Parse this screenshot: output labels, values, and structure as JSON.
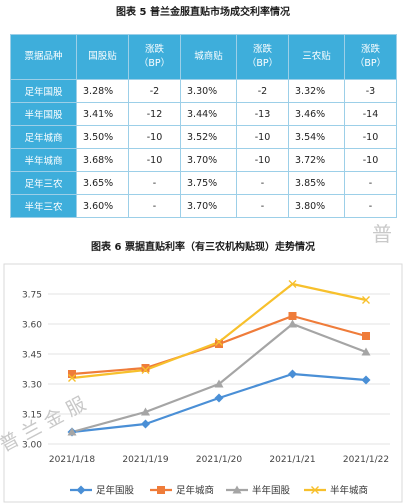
{
  "table": {
    "title": "图表 5  普兰金服直贴市场成交利率情况",
    "headers": [
      "票据品种",
      "国股贴",
      "涨跌\n（BP）",
      "城商贴",
      "涨跌\n（BP）",
      "三农贴",
      "涨跌\n（BP）"
    ],
    "rows": [
      [
        "足年国股",
        "3.28%",
        "-2",
        "3.30%",
        "-2",
        "3.32%",
        "-3"
      ],
      [
        "半年国股",
        "3.41%",
        "-12",
        "3.44%",
        "-13",
        "3.46%",
        "-14"
      ],
      [
        "足年城商",
        "3.50%",
        "-10",
        "3.52%",
        "-10",
        "3.54%",
        "-10"
      ],
      [
        "半年城商",
        "3.68%",
        "-10",
        "3.70%",
        "-10",
        "3.72%",
        "-10"
      ],
      [
        "足年三农",
        "3.65%",
        "-",
        "3.75%",
        "-",
        "3.85%",
        "-"
      ],
      [
        "半年三农",
        "3.60%",
        "-",
        "3.70%",
        "-",
        "3.80%",
        "-"
      ]
    ],
    "header_color": "#3eaedb",
    "border_color": "#9ccfe8"
  },
  "watermark_top": "普",
  "watermark_bottom": "普 兰 金 服",
  "chart_data": {
    "type": "line",
    "title": "图表 6  票据直贴利率（有三农机构贴现）走势情况",
    "x": [
      "2021/1/18",
      "2021/1/19",
      "2021/1/20",
      "2021/1/21",
      "2021/1/22"
    ],
    "ylim": [
      3.0,
      3.85
    ],
    "yticks": [
      "3.00",
      "3.15",
      "3.30",
      "3.45",
      "3.60",
      "3.75"
    ],
    "grid": true,
    "legend": "bottom",
    "series": [
      {
        "name": "足年国股",
        "values": [
          3.06,
          3.1,
          3.23,
          3.35,
          3.32
        ],
        "color": "#4a8fd6",
        "marker": "diamond"
      },
      {
        "name": "足年城商",
        "values": [
          3.35,
          3.38,
          3.5,
          3.64,
          3.54
        ],
        "color": "#ef7c3a",
        "marker": "square"
      },
      {
        "name": "半年国股",
        "values": [
          3.06,
          3.16,
          3.3,
          3.6,
          3.46
        ],
        "color": "#a5a5a5",
        "marker": "triangle"
      },
      {
        "name": "半年城商",
        "values": [
          3.33,
          3.37,
          3.51,
          3.8,
          3.72
        ],
        "color": "#f7c02c",
        "marker": "x"
      }
    ]
  }
}
